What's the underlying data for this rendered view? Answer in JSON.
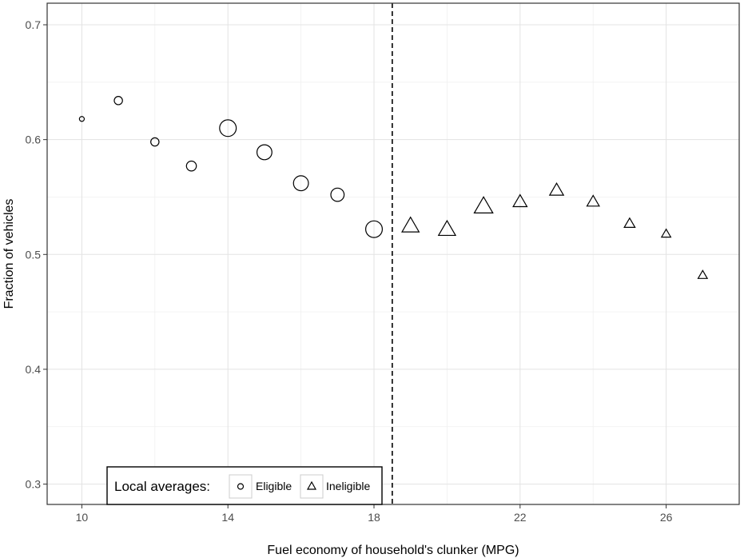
{
  "chart_data": {
    "type": "scatter",
    "title": "",
    "xlabel": "Fuel economy of household's clunker (MPG)",
    "ylabel": "Fraction of vehicles",
    "xlim": [
      9.05,
      28.0
    ],
    "ylim": [
      0.2823,
      0.7188
    ],
    "x_ticks": [
      10,
      14,
      18,
      22,
      26
    ],
    "y_ticks": [
      0.3,
      0.4,
      0.5,
      0.6,
      0.7
    ],
    "x_tick_labels": [
      "10",
      "14",
      "18",
      "22",
      "26"
    ],
    "y_tick_labels": [
      "0.3",
      "0.4",
      "0.5",
      "0.6",
      "0.7"
    ],
    "grid": true,
    "cutoff_x": 18.5,
    "legend": {
      "position": "bottom-left",
      "title": "Local averages:",
      "labels": [
        "Eligible",
        "Ineligible"
      ]
    },
    "series": [
      {
        "name": "Eligible",
        "marker": "circle",
        "x": [
          10,
          11,
          12,
          13,
          14,
          15,
          16,
          17,
          18
        ],
        "y": [
          0.618,
          0.634,
          0.598,
          0.577,
          0.61,
          0.589,
          0.562,
          0.552,
          0.522
        ],
        "size": [
          1,
          3,
          3,
          4,
          8,
          7,
          7,
          6,
          8
        ]
      },
      {
        "name": "Ineligible",
        "marker": "triangle",
        "x": [
          19,
          20,
          21,
          22,
          23,
          24,
          25,
          26,
          27
        ],
        "y": [
          0.525,
          0.522,
          0.542,
          0.546,
          0.556,
          0.546,
          0.527,
          0.518,
          0.482
        ],
        "size": [
          9,
          9,
          10,
          7,
          7,
          6,
          5,
          4,
          4
        ]
      }
    ]
  }
}
